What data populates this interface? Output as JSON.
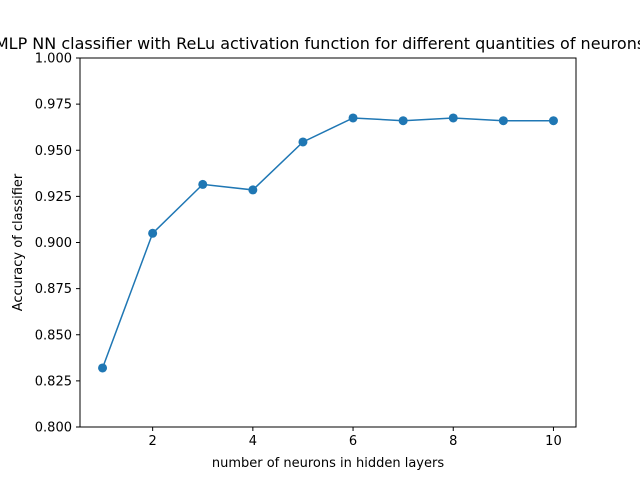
{
  "chart_data": {
    "type": "line",
    "title": "MLP NN classifier with ReLu activation function for different quantities of neurons",
    "xlabel": "number of neurons in hidden layers",
    "ylabel": "Accuracy of classifier",
    "x": [
      1,
      2,
      3,
      4,
      5,
      6,
      7,
      8,
      9,
      10
    ],
    "series": [
      {
        "values": [
          0.832,
          0.905,
          0.9315,
          0.9285,
          0.9545,
          0.9675,
          0.966,
          0.9675,
          0.966,
          0.966
        ],
        "color": "#1f77b4",
        "marker": "circle"
      }
    ],
    "xlim": [
      0.55,
      10.45
    ],
    "ylim": [
      0.8,
      1.0
    ],
    "xticks": [
      2,
      4,
      6,
      8,
      10
    ],
    "yticks": [
      "0.800",
      "0.825",
      "0.850",
      "0.875",
      "0.900",
      "0.925",
      "0.950",
      "0.975",
      "1.000"
    ],
    "grid": false,
    "legend": "none"
  }
}
